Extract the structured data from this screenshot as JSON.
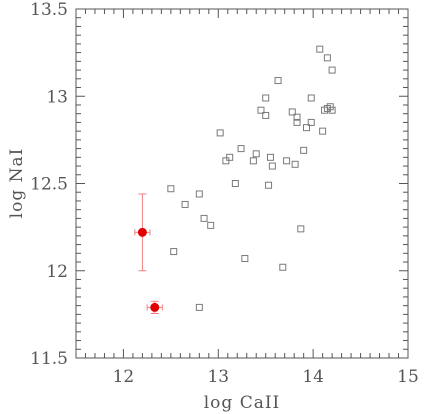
{
  "chart_data": {
    "type": "scatter",
    "title": "",
    "xlabel": "log CaII",
    "ylabel": "log NaI",
    "xlim": [
      11.5,
      15
    ],
    "ylim": [
      11.5,
      13.5
    ],
    "xticks_major": [
      "12",
      "13",
      "14",
      "15"
    ],
    "yticks_major": [
      "11.5",
      "12",
      "12.5",
      "13",
      "13.5"
    ],
    "grid": false,
    "legend": "none",
    "colors": {
      "axis": "#555555",
      "comparison": "#7a7a7a",
      "highlight": "#e00000",
      "errorbar": "#f08080"
    },
    "series": [
      {
        "marker": "open-square",
        "points": [
          [
            12.5,
            12.47
          ],
          [
            12.53,
            12.11
          ],
          [
            12.65,
            12.38
          ],
          [
            12.8,
            12.44
          ],
          [
            12.85,
            12.3
          ],
          [
            12.92,
            12.26
          ],
          [
            12.8,
            11.79
          ],
          [
            13.02,
            12.79
          ],
          [
            13.08,
            12.63
          ],
          [
            13.12,
            12.65
          ],
          [
            13.18,
            12.5
          ],
          [
            13.24,
            12.7
          ],
          [
            13.28,
            12.07
          ],
          [
            13.37,
            12.63
          ],
          [
            13.4,
            12.67
          ],
          [
            13.45,
            12.92
          ],
          [
            13.5,
            12.89
          ],
          [
            13.5,
            12.99
          ],
          [
            13.53,
            12.49
          ],
          [
            13.55,
            12.65
          ],
          [
            13.57,
            12.6
          ],
          [
            13.63,
            13.09
          ],
          [
            13.68,
            12.02
          ],
          [
            13.72,
            12.63
          ],
          [
            13.78,
            12.91
          ],
          [
            13.81,
            12.61
          ],
          [
            13.83,
            12.85
          ],
          [
            13.83,
            12.88
          ],
          [
            13.87,
            12.24
          ],
          [
            13.9,
            12.69
          ],
          [
            13.93,
            12.82
          ],
          [
            13.98,
            12.85
          ],
          [
            13.98,
            12.99
          ],
          [
            14.07,
            13.27
          ],
          [
            14.1,
            12.8
          ],
          [
            14.12,
            12.92
          ],
          [
            14.15,
            12.93
          ],
          [
            14.18,
            12.94
          ],
          [
            14.2,
            12.92
          ],
          [
            14.15,
            13.22
          ],
          [
            14.2,
            13.15
          ]
        ]
      },
      {
        "marker": "filled-circle",
        "points": [
          {
            "x": 12.2,
            "y": 12.22,
            "xerr": 0.08,
            "yerr": 0.22
          },
          {
            "x": 12.33,
            "y": 11.79,
            "xerr": 0.08,
            "yerr": 0.035
          }
        ]
      }
    ]
  }
}
